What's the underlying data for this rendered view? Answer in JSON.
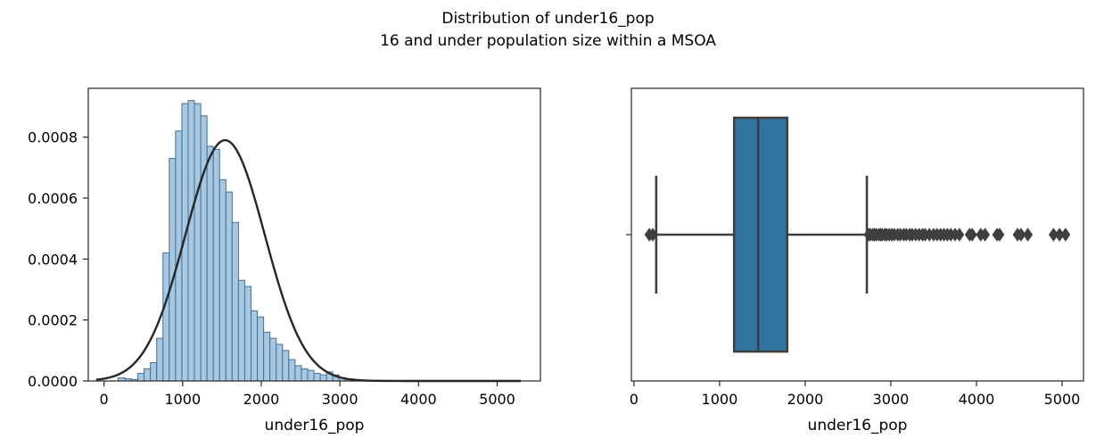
{
  "figure": {
    "title_line1": "Distribution of under16_pop",
    "title_line2": "16 and under population size within a MSOA"
  },
  "chart_data": [
    {
      "type": "histogram",
      "xlabel": "under16_pop",
      "ylabel": "",
      "xlim": [
        -200,
        5550
      ],
      "ylim": [
        0,
        0.00096
      ],
      "xticks": [
        0,
        1000,
        2000,
        3000,
        4000,
        5000
      ],
      "xtick_labels": [
        "0",
        "1000",
        "2000",
        "3000",
        "4000",
        "5000"
      ],
      "yticks": [
        0,
        0.0002,
        0.0004,
        0.0006,
        0.0008
      ],
      "ytick_labels": [
        "0.0000",
        "0.0002",
        "0.0004",
        "0.0006",
        "0.0008"
      ],
      "bin_edges": [
        180,
        270,
        350,
        430,
        510,
        590,
        670,
        750,
        830,
        910,
        990,
        1070,
        1150,
        1230,
        1310,
        1390,
        1470,
        1550,
        1630,
        1710,
        1790,
        1870,
        1950,
        2030,
        2110,
        2190,
        2270,
        2350,
        2430,
        2510,
        2590,
        2670,
        2750,
        2830,
        2910,
        2990,
        3070,
        3150,
        3230,
        3310,
        3390,
        3470,
        3550,
        3630,
        3710,
        3790,
        3870,
        3950,
        4030,
        4110,
        4190,
        4270,
        4350,
        4430,
        4510,
        4590,
        4670,
        4750,
        4830,
        4910,
        4990,
        5070
      ],
      "densities": [
        1e-05,
        7e-06,
        5e-06,
        2.5e-05,
        4e-05,
        6e-05,
        0.00014,
        0.00042,
        0.00073,
        0.00082,
        0.00091,
        0.00092,
        0.00091,
        0.00087,
        0.00077,
        0.00076,
        0.00066,
        0.00062,
        0.00052,
        0.00033,
        0.00031,
        0.00023,
        0.00021,
        0.00016,
        0.00014,
        0.00012,
        0.0001,
        7e-05,
        5e-05,
        4e-05,
        3.5e-05,
        2.5e-05,
        2e-05,
        3e-05,
        2e-05,
        1e-05,
        5e-06,
        3e-06,
        2e-06,
        3e-06,
        2e-06,
        2e-06,
        2e-06,
        1e-06,
        1e-06,
        1e-06,
        1e-06,
        0,
        0,
        1e-06,
        0,
        0,
        0,
        0,
        0,
        0,
        0,
        0,
        0,
        0,
        0
      ],
      "fit_curve": {
        "type": "normal",
        "mean": 1540,
        "std": 505,
        "x_range": [
          -100,
          5300
        ]
      },
      "colors": {
        "bar_fill": "#a6c8e2",
        "bar_edge": "#4a6f8f",
        "curve": "#262626"
      },
      "grid": false
    },
    {
      "type": "boxplot",
      "xlabel": "under16_pop",
      "xlim": [
        -30,
        5250
      ],
      "xticks": [
        0,
        1000,
        2000,
        3000,
        4000,
        5000
      ],
      "xtick_labels": [
        "0",
        "1000",
        "2000",
        "3000",
        "4000",
        "5000"
      ],
      "yticks": [
        0
      ],
      "ytick_labels": [
        ""
      ],
      "stats": {
        "whisker_low": 260,
        "q1": 1170,
        "median": 1450,
        "q3": 1790,
        "whisker_high": 2720
      },
      "outliers": [
        180,
        220,
        2740,
        2760,
        2790,
        2810,
        2830,
        2860,
        2880,
        2900,
        2930,
        2950,
        2980,
        3010,
        3040,
        3080,
        3110,
        3150,
        3180,
        3220,
        3250,
        3290,
        3330,
        3370,
        3400,
        3450,
        3500,
        3540,
        3580,
        3620,
        3660,
        3700,
        3750,
        3800,
        3920,
        3950,
        4050,
        4100,
        4240,
        4270,
        4480,
        4520,
        4600,
        4900,
        4970,
        5040
      ],
      "colors": {
        "box_fill": "#3274a1",
        "line": "#3f3f3f"
      },
      "grid": false
    }
  ]
}
